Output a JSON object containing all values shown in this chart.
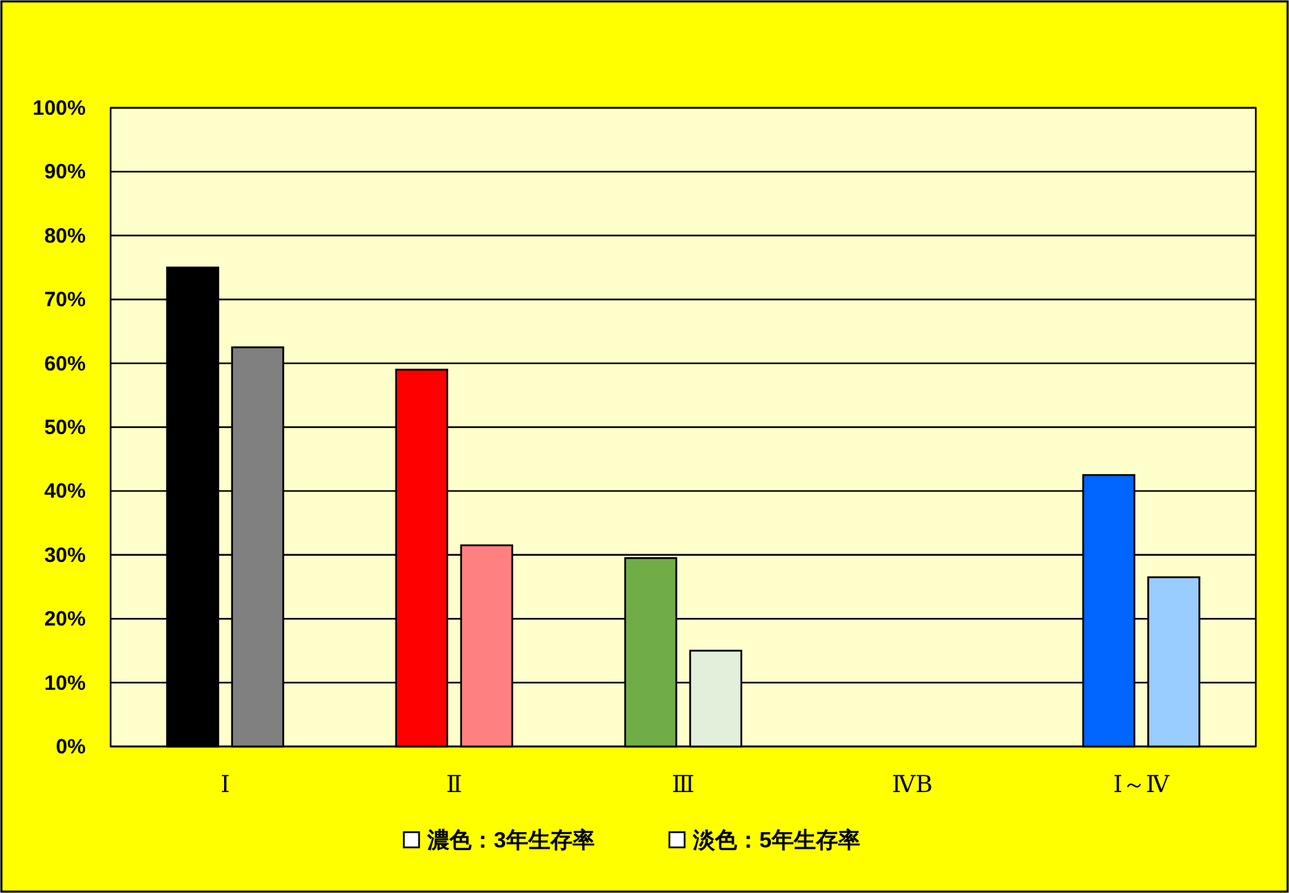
{
  "chart_data": {
    "type": "bar",
    "categories": [
      "Ⅰ",
      "Ⅱ",
      "Ⅲ",
      "ⅣB",
      "Ⅰ～Ⅳ"
    ],
    "series": [
      {
        "colors": [
          "#000000",
          "#ff0000",
          "#70ad47",
          null,
          "#0066ff"
        ],
        "values": [
          75,
          59,
          29.5,
          null,
          42.5
        ]
      },
      {
        "colors": [
          "#808080",
          "#ff8080",
          "#e2efda",
          null,
          "#99ccff"
        ],
        "values": [
          62.5,
          31.5,
          15,
          null,
          26.5
        ]
      }
    ],
    "ylim": [
      0,
      100
    ],
    "yticks": [
      {
        "value": 0,
        "label": "0%"
      },
      {
        "value": 10,
        "label": "10%"
      },
      {
        "value": 20,
        "label": "20%"
      },
      {
        "value": 30,
        "label": "30%"
      },
      {
        "value": 40,
        "label": "40%"
      },
      {
        "value": 50,
        "label": "50%"
      },
      {
        "value": 60,
        "label": "60%"
      },
      {
        "value": 70,
        "label": "70%"
      },
      {
        "value": 80,
        "label": "80%"
      },
      {
        "value": 90,
        "label": "90%"
      },
      {
        "value": 100,
        "label": "100%"
      }
    ],
    "grid": "y",
    "annotations": [
      "濃色：3年生存率",
      "淡色：5年生存率"
    ]
  }
}
